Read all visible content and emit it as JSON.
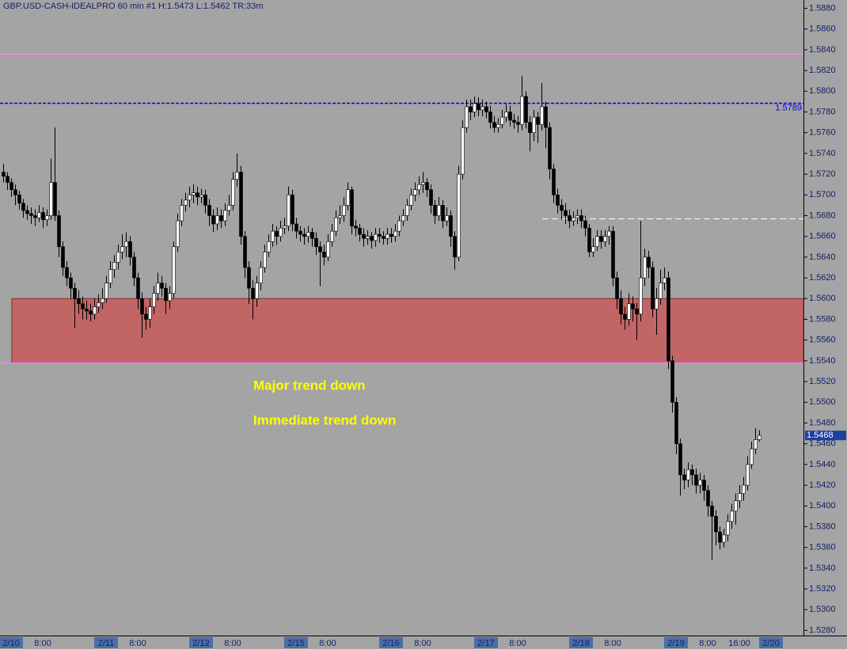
{
  "chart_data": {
    "type": "candlestick",
    "title": "GBP.USD-CASH-IDEALPRO  60 min  #1  H:1.5473  L:1.5462  TR:33m",
    "categories": [
      null,
      null,
      "2/10",
      null,
      null,
      null,
      null,
      null,
      null,
      null,
      "8:00",
      null,
      null,
      null,
      null,
      null,
      null,
      null,
      null,
      null,
      null,
      null,
      null,
      null,
      null,
      null,
      "2/11",
      null,
      null,
      null,
      null,
      null,
      null,
      null,
      "8:00",
      null,
      null,
      null,
      null,
      null,
      null,
      null,
      null,
      null,
      null,
      null,
      null,
      null,
      null,
      null,
      "2/12",
      null,
      null,
      null,
      null,
      null,
      null,
      null,
      "8:00",
      null,
      null,
      null,
      null,
      null,
      null,
      null,
      null,
      null,
      null,
      null,
      null,
      null,
      null,
      null,
      "2/15",
      null,
      null,
      null,
      null,
      null,
      null,
      null,
      "8:00",
      null,
      null,
      null,
      null,
      null,
      null,
      null,
      null,
      null,
      null,
      null,
      null,
      null,
      null,
      null,
      "2/16",
      null,
      null,
      null,
      null,
      null,
      null,
      null,
      "8:00",
      null,
      null,
      null,
      null,
      null,
      null,
      null,
      null,
      null,
      null,
      null,
      null,
      null,
      null,
      null,
      "2/17",
      null,
      null,
      null,
      null,
      null,
      null,
      null,
      "8:00",
      null,
      null,
      null,
      null,
      null,
      null,
      null,
      null,
      null,
      null,
      null,
      null,
      null,
      null,
      null,
      "2/18",
      null,
      null,
      null,
      null,
      null,
      null,
      null,
      "8:00",
      null,
      null,
      null,
      null,
      null,
      null,
      null,
      null,
      null,
      null,
      null,
      null,
      null,
      null,
      null,
      "2/19",
      null,
      null,
      null,
      null,
      null,
      null,
      null,
      "8:00",
      null,
      null,
      null,
      null,
      null,
      null,
      null,
      "16:00",
      null,
      null,
      null,
      null,
      null,
      null,
      null,
      "2/20"
    ],
    "open": [
      1.5722,
      1.5718,
      1.5712,
      1.5705,
      1.57,
      1.5692,
      1.5685,
      1.5682,
      1.568,
      1.5678,
      1.5683,
      1.5676,
      1.568,
      1.5712,
      1.568,
      1.565,
      1.563,
      1.562,
      1.561,
      1.56,
      1.5595,
      1.559,
      1.5588,
      1.5585,
      1.5592,
      1.5596,
      1.56,
      1.5615,
      1.5628,
      1.5635,
      1.5645,
      1.565,
      1.5655,
      1.564,
      1.562,
      1.56,
      1.5585,
      1.558,
      1.5592,
      1.5605,
      1.5615,
      1.561,
      1.5598,
      1.5605,
      1.565,
      1.5675,
      1.569,
      1.5695,
      1.57,
      1.5702,
      1.5698,
      1.57,
      1.569,
      1.568,
      1.5672,
      1.568,
      1.5675,
      1.5685,
      1.569,
      1.5715,
      1.5722,
      1.566,
      1.563,
      1.561,
      1.56,
      1.5615,
      1.563,
      1.5645,
      1.5655,
      1.5665,
      1.566,
      1.5668,
      1.567,
      1.57,
      1.5672,
      1.5665,
      1.5662,
      1.566,
      1.5664,
      1.5658,
      1.565,
      1.5645,
      1.564,
      1.5655,
      1.5665,
      1.5678,
      1.568,
      1.569,
      1.5705,
      1.567,
      1.5668,
      1.5662,
      1.5658,
      1.566,
      1.5656,
      1.5662,
      1.566,
      1.5658,
      1.5662,
      1.566,
      1.5665,
      1.5675,
      1.568,
      1.569,
      1.57,
      1.5705,
      1.571,
      1.5712,
      1.5705,
      1.569,
      1.568,
      1.569,
      1.5675,
      1.568,
      1.566,
      1.564,
      1.572,
      1.5765,
      1.5785,
      1.578,
      1.5788,
      1.5782,
      1.5785,
      1.578,
      1.577,
      1.5765,
      1.5768,
      1.5775,
      1.578,
      1.5772,
      1.577,
      1.5768,
      1.5795,
      1.577,
      1.576,
      1.5775,
      1.5768,
      1.5785,
      1.5765,
      1.5725,
      1.57,
      1.569,
      1.5685,
      1.568,
      1.5675,
      1.5678,
      1.568,
      1.5675,
      1.5668,
      1.5645,
      1.565,
      1.566,
      1.5655,
      1.566,
      1.5665,
      1.562,
      1.56,
      1.5585,
      1.558,
      1.5595,
      1.559,
      1.5585,
      1.562,
      1.564,
      1.563,
      1.559,
      1.56,
      1.5615,
      1.562,
      1.554,
      1.55,
      1.546,
      1.543,
      1.5425,
      1.5435,
      1.543,
      1.542,
      1.5425,
      1.5415,
      1.54,
      1.539,
      1.5375,
      1.5365,
      1.5372,
      1.5385,
      1.5395,
      1.5405,
      1.5412,
      1.542,
      1.544,
      1.5455,
      1.5464,
      null,
      null,
      null
    ],
    "high": [
      1.573,
      1.5722,
      1.5716,
      1.571,
      1.5704,
      1.5696,
      1.569,
      1.5688,
      1.5686,
      1.569,
      1.5688,
      1.5686,
      1.5735,
      1.5765,
      1.5685,
      1.5655,
      1.5636,
      1.5625,
      1.5615,
      1.5608,
      1.5602,
      1.5598,
      1.5595,
      1.56,
      1.5604,
      1.561,
      1.5622,
      1.5636,
      1.5642,
      1.5652,
      1.5662,
      1.5664,
      1.566,
      1.5645,
      1.5625,
      1.5606,
      1.5592,
      1.56,
      1.5612,
      1.5625,
      1.5622,
      1.5615,
      1.5612,
      1.5655,
      1.5682,
      1.5696,
      1.5702,
      1.5708,
      1.571,
      1.5708,
      1.5706,
      1.5705,
      1.5696,
      1.5686,
      1.5688,
      1.5686,
      1.5692,
      1.57,
      1.5722,
      1.574,
      1.5728,
      1.5665,
      1.5636,
      1.5618,
      1.5622,
      1.5636,
      1.5652,
      1.5662,
      1.5672,
      1.567,
      1.5675,
      1.5678,
      1.5708,
      1.5705,
      1.5678,
      1.567,
      1.5668,
      1.567,
      1.5668,
      1.5664,
      1.5655,
      1.5652,
      1.5662,
      1.5672,
      1.5685,
      1.569,
      1.5698,
      1.5712,
      1.5708,
      1.5676,
      1.5672,
      1.5668,
      1.5666,
      1.5664,
      1.5668,
      1.5668,
      1.5665,
      1.5668,
      1.5668,
      1.5672,
      1.568,
      1.5686,
      1.5696,
      1.5706,
      1.5712,
      1.5718,
      1.5722,
      1.5716,
      1.571,
      1.5695,
      1.5698,
      1.5695,
      1.5688,
      1.5685,
      1.5665,
      1.5728,
      1.5772,
      1.5792,
      1.5792,
      1.5795,
      1.5794,
      1.5792,
      1.579,
      1.5786,
      1.5776,
      1.5774,
      1.5782,
      1.5788,
      1.5786,
      1.5778,
      1.5776,
      1.5815,
      1.58,
      1.5776,
      1.5782,
      1.578,
      1.5808,
      1.579,
      1.577,
      1.573,
      1.5706,
      1.5696,
      1.5692,
      1.5686,
      1.5684,
      1.5686,
      1.5686,
      1.568,
      1.5672,
      1.5658,
      1.5666,
      1.5666,
      1.5666,
      1.567,
      1.567,
      1.5626,
      1.5608,
      1.5592,
      1.5605,
      1.5602,
      1.5596,
      1.5675,
      1.5648,
      1.5646,
      1.5636,
      1.561,
      1.5628,
      1.563,
      1.5626,
      1.5545,
      1.5505,
      1.5465,
      1.5436,
      1.5442,
      1.544,
      1.5436,
      1.5432,
      1.543,
      1.542,
      1.5405,
      1.5396,
      1.538,
      1.5378,
      1.5392,
      1.5402,
      1.5412,
      1.542,
      1.5428,
      1.5448,
      1.5462,
      1.5475,
      1.5473,
      null,
      null,
      null
    ],
    "low": [
      1.5712,
      1.5705,
      1.5698,
      1.569,
      1.5686,
      1.5678,
      1.5676,
      1.5672,
      1.567,
      1.5674,
      1.5668,
      1.567,
      1.5676,
      1.5675,
      1.564,
      1.5622,
      1.5612,
      1.56,
      1.5572,
      1.5585,
      1.558,
      1.558,
      1.5578,
      1.558,
      1.5586,
      1.559,
      1.5596,
      1.561,
      1.562,
      1.5628,
      1.5638,
      1.564,
      1.5632,
      1.5612,
      1.559,
      1.5562,
      1.557,
      1.5572,
      1.5585,
      1.5598,
      1.5602,
      1.5585,
      1.559,
      1.56,
      1.5645,
      1.567,
      1.5684,
      1.5688,
      1.5692,
      1.569,
      1.5692,
      1.5682,
      1.567,
      1.5664,
      1.5666,
      1.5668,
      1.567,
      1.568,
      1.5685,
      1.5708,
      1.5652,
      1.562,
      1.5595,
      1.558,
      1.5592,
      1.5608,
      1.5625,
      1.564,
      1.565,
      1.5652,
      1.5655,
      1.5662,
      1.5665,
      1.5665,
      1.5658,
      1.5655,
      1.5652,
      1.5654,
      1.565,
      1.5642,
      1.5612,
      1.5632,
      1.5636,
      1.565,
      1.566,
      1.5672,
      1.5674,
      1.5685,
      1.5662,
      1.566,
      1.5655,
      1.565,
      1.5652,
      1.5648,
      1.565,
      1.5654,
      1.5652,
      1.5652,
      1.5654,
      1.5655,
      1.566,
      1.567,
      1.5675,
      1.5685,
      1.5694,
      1.57,
      1.5702,
      1.5698,
      1.5682,
      1.5672,
      1.5675,
      1.5668,
      1.567,
      1.565,
      1.5628,
      1.5636,
      1.5715,
      1.576,
      1.5772,
      1.5775,
      1.5776,
      1.5776,
      1.5774,
      1.5764,
      1.576,
      1.576,
      1.5764,
      1.577,
      1.5766,
      1.5764,
      1.576,
      1.5762,
      1.5764,
      1.5742,
      1.5752,
      1.575,
      1.5762,
      1.5745,
      1.5715,
      1.5692,
      1.5682,
      1.5676,
      1.5672,
      1.5668,
      1.567,
      1.5672,
      1.5668,
      1.566,
      1.564,
      1.564,
      1.5646,
      1.5648,
      1.565,
      1.5652,
      1.5612,
      1.559,
      1.5575,
      1.557,
      1.5574,
      1.5578,
      1.556,
      1.5578,
      1.5612,
      1.562,
      1.5582,
      1.5565,
      1.5594,
      1.5608,
      1.5532,
      1.549,
      1.545,
      1.541,
      1.5416,
      1.5418,
      1.542,
      1.5412,
      1.5412,
      1.5405,
      1.539,
      1.5348,
      1.5362,
      1.5358,
      1.536,
      1.5366,
      1.5378,
      1.5382,
      1.5398,
      1.5405,
      1.5415,
      1.5436,
      1.545,
      1.5462,
      null,
      null,
      null
    ],
    "close": [
      1.5718,
      1.5712,
      1.5705,
      1.57,
      1.5692,
      1.5685,
      1.5682,
      1.568,
      1.5678,
      1.5683,
      1.5676,
      1.568,
      1.5712,
      1.568,
      1.565,
      1.563,
      1.562,
      1.561,
      1.56,
      1.5595,
      1.559,
      1.5588,
      1.5585,
      1.5592,
      1.5596,
      1.56,
      1.5615,
      1.5628,
      1.5635,
      1.5645,
      1.565,
      1.5655,
      1.564,
      1.562,
      1.56,
      1.5585,
      1.558,
      1.5592,
      1.5605,
      1.5615,
      1.561,
      1.5598,
      1.5605,
      1.565,
      1.5675,
      1.569,
      1.5695,
      1.57,
      1.5702,
      1.5698,
      1.57,
      1.569,
      1.568,
      1.5672,
      1.568,
      1.5675,
      1.5685,
      1.569,
      1.5715,
      1.5722,
      1.566,
      1.563,
      1.561,
      1.56,
      1.5615,
      1.563,
      1.5645,
      1.5655,
      1.5665,
      1.566,
      1.5668,
      1.567,
      1.57,
      1.5672,
      1.5665,
      1.5662,
      1.566,
      1.5664,
      1.5658,
      1.565,
      1.5645,
      1.564,
      1.5655,
      1.5665,
      1.5678,
      1.568,
      1.569,
      1.5705,
      1.567,
      1.5668,
      1.5662,
      1.5658,
      1.566,
      1.5656,
      1.5662,
      1.566,
      1.5658,
      1.5662,
      1.566,
      1.5665,
      1.5675,
      1.568,
      1.569,
      1.57,
      1.5705,
      1.571,
      1.5712,
      1.5705,
      1.569,
      1.568,
      1.569,
      1.5675,
      1.568,
      1.566,
      1.564,
      1.572,
      1.5765,
      1.5785,
      1.578,
      1.5788,
      1.5782,
      1.5785,
      1.578,
      1.577,
      1.5765,
      1.5768,
      1.5775,
      1.578,
      1.5772,
      1.577,
      1.5768,
      1.5795,
      1.577,
      1.576,
      1.5775,
      1.5768,
      1.5785,
      1.5765,
      1.5725,
      1.57,
      1.569,
      1.5685,
      1.568,
      1.5675,
      1.5678,
      1.568,
      1.5675,
      1.5668,
      1.5645,
      1.565,
      1.566,
      1.5655,
      1.566,
      1.5665,
      1.562,
      1.56,
      1.5585,
      1.558,
      1.5595,
      1.559,
      1.5585,
      1.562,
      1.564,
      1.563,
      1.559,
      1.56,
      1.5615,
      1.562,
      1.554,
      1.55,
      1.546,
      1.543,
      1.5425,
      1.5435,
      1.543,
      1.542,
      1.5425,
      1.5415,
      1.54,
      1.539,
      1.5375,
      1.5365,
      1.5372,
      1.5385,
      1.5395,
      1.5405,
      1.5412,
      1.542,
      1.544,
      1.5455,
      1.5464,
      1.5468,
      null,
      null,
      null
    ],
    "up_color": "#ffffff",
    "down_color": "#000000",
    "ylim": [
      1.5275,
      1.5888
    ],
    "yticks": [
      {
        "value": 1.528,
        "label": "1.5280"
      },
      {
        "value": 1.53,
        "label": "1.5300"
      },
      {
        "value": 1.532,
        "label": "1.5320"
      },
      {
        "value": 1.534,
        "label": "1.5340"
      },
      {
        "value": 1.536,
        "label": "1.5360"
      },
      {
        "value": 1.538,
        "label": "1.5380"
      },
      {
        "value": 1.54,
        "label": "1.5400"
      },
      {
        "value": 1.542,
        "label": "1.5420"
      },
      {
        "value": 1.544,
        "label": "1.5440"
      },
      {
        "value": 1.546,
        "label": "1.5460"
      },
      {
        "value": 1.548,
        "label": "1.5480"
      },
      {
        "value": 1.55,
        "label": "1.5500"
      },
      {
        "value": 1.552,
        "label": "1.5520"
      },
      {
        "value": 1.554,
        "label": "1.5540"
      },
      {
        "value": 1.556,
        "label": "1.5560"
      },
      {
        "value": 1.558,
        "label": "1.5580"
      },
      {
        "value": 1.56,
        "label": "1.5600"
      },
      {
        "value": 1.562,
        "label": "1.5620"
      },
      {
        "value": 1.564,
        "label": "1.5640"
      },
      {
        "value": 1.566,
        "label": "1.5660"
      },
      {
        "value": 1.568,
        "label": "1.5680"
      },
      {
        "value": 1.57,
        "label": "1.5700"
      },
      {
        "value": 1.572,
        "label": "1.5720"
      },
      {
        "value": 1.574,
        "label": "1.5740"
      },
      {
        "value": 1.576,
        "label": "1.5760"
      },
      {
        "value": 1.578,
        "label": "1.5780"
      },
      {
        "value": 1.58,
        "label": "1.5800"
      },
      {
        "value": 1.582,
        "label": "1.5820"
      },
      {
        "value": 1.584,
        "label": "1.5840"
      },
      {
        "value": 1.586,
        "label": "1.5860"
      },
      {
        "value": 1.588,
        "label": "1.5880"
      }
    ],
    "zone": {
      "low": 1.5538,
      "high": 1.56,
      "color": "#c85a5a"
    },
    "hlines": [
      {
        "value": 1.5836,
        "color": "#ff80ff",
        "style": "solid"
      },
      {
        "value": 1.5789,
        "color": "#0000ee",
        "style": "dashed"
      },
      {
        "value": 1.5538,
        "color": "#ff80ff",
        "style": "solid"
      },
      {
        "value": 1.5677,
        "color": "#ffffff",
        "style": "dashed"
      }
    ],
    "annotations": [
      {
        "text": "Major trend down"
      },
      {
        "text": "Immediate trend down"
      }
    ]
  }
}
